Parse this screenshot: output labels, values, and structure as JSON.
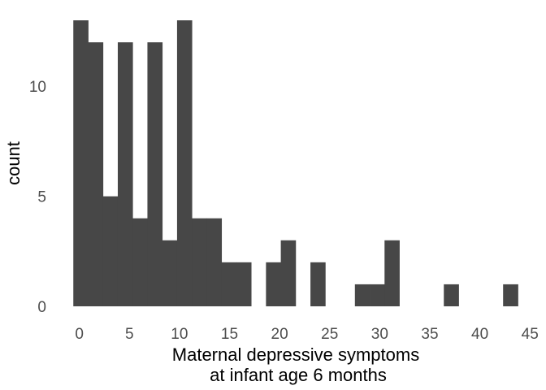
{
  "chart_data": {
    "type": "bar",
    "subtype": "histogram",
    "bar_color": "#474747",
    "background": "#ffffff",
    "grid": false,
    "xlabel_lines": [
      "Maternal depressive symptoms",
      "at infant age 6 months"
    ],
    "ylabel": "count",
    "xlim": [
      -1.35,
      44.9
    ],
    "ylim": [
      0,
      13
    ],
    "x_ticks": [
      0,
      5,
      10,
      15,
      20,
      25,
      30,
      35,
      40,
      45
    ],
    "y_ticks": [
      0,
      5,
      10
    ],
    "bin_width": 1.48,
    "bins": [
      {
        "x_start": -0.6,
        "count": 13
      },
      {
        "x_start": 0.88,
        "count": 12
      },
      {
        "x_start": 2.36,
        "count": 5
      },
      {
        "x_start": 3.84,
        "count": 12
      },
      {
        "x_start": 5.32,
        "count": 4
      },
      {
        "x_start": 6.8,
        "count": 12
      },
      {
        "x_start": 8.28,
        "count": 3
      },
      {
        "x_start": 9.76,
        "count": 13
      },
      {
        "x_start": 11.24,
        "count": 4
      },
      {
        "x_start": 12.72,
        "count": 4
      },
      {
        "x_start": 14.2,
        "count": 2
      },
      {
        "x_start": 15.68,
        "count": 2
      },
      {
        "x_start": 17.16,
        "count": 0
      },
      {
        "x_start": 18.64,
        "count": 2
      },
      {
        "x_start": 20.12,
        "count": 3
      },
      {
        "x_start": 21.6,
        "count": 0
      },
      {
        "x_start": 23.08,
        "count": 2
      },
      {
        "x_start": 24.56,
        "count": 0
      },
      {
        "x_start": 26.04,
        "count": 0
      },
      {
        "x_start": 27.52,
        "count": 1
      },
      {
        "x_start": 29.0,
        "count": 1
      },
      {
        "x_start": 30.48,
        "count": 3
      },
      {
        "x_start": 31.96,
        "count": 0
      },
      {
        "x_start": 33.44,
        "count": 0
      },
      {
        "x_start": 34.92,
        "count": 0
      },
      {
        "x_start": 36.4,
        "count": 1
      },
      {
        "x_start": 37.88,
        "count": 0
      },
      {
        "x_start": 39.36,
        "count": 0
      },
      {
        "x_start": 40.84,
        "count": 0
      },
      {
        "x_start": 42.32,
        "count": 1
      }
    ]
  }
}
